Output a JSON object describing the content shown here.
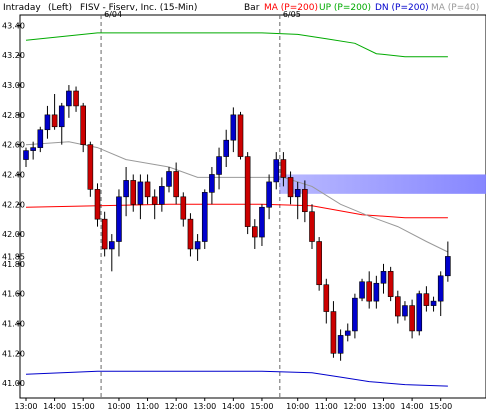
{
  "header": {
    "mode": "Intraday",
    "left_tag": "(Left)",
    "title": "FISV - Fiserv, Inc. (15-Min)",
    "bar": "Bar",
    "legend": [
      {
        "label": "MA (P=200)",
        "color": "#ff0000"
      },
      {
        "label": "UP (P=200)",
        "color": "#00aa00"
      },
      {
        "label": "DN (P=200)",
        "color": "#0000cc"
      },
      {
        "label": "MA (P=40)",
        "color": "#999999"
      }
    ]
  },
  "chart_data": {
    "type": "candlestick",
    "title": "FISV - Fiserv, Inc. (15-Min)",
    "x_tick_labels": [
      "13:00",
      "14:00",
      "15:00",
      "10:00",
      "11:00",
      "12:00",
      "13:00",
      "14:00",
      "15:00",
      "10:00",
      "11:00",
      "12:00",
      "13:00",
      "14:00",
      "15:00"
    ],
    "x_tick_bar_index": [
      0,
      4,
      8,
      13,
      17,
      21,
      25,
      29,
      33,
      38,
      42,
      46,
      50,
      54,
      58
    ],
    "date_markers": [
      {
        "label": "6/04",
        "bar_index": 11
      },
      {
        "label": "6/05",
        "bar_index": 36
      }
    ],
    "y_tick_labels": [
      "43.40",
      "43.20",
      "43.00",
      "42.80",
      "42.60",
      "42.40",
      "42.20",
      "42.00",
      "41.85",
      "41.80",
      "41.60",
      "41.40",
      "41.20",
      "41.00"
    ],
    "ylim": [
      40.9,
      43.47
    ],
    "highlight_band": [
      42.27,
      42.4
    ],
    "colors": {
      "up": "#0000cc",
      "down": "#cc0000",
      "ma200": "#ff0000",
      "up200": "#00aa00",
      "dn200": "#0000cc",
      "ma40": "#999999",
      "band": "#8080ff"
    },
    "candles": [
      [
        42.5,
        42.58,
        42.45,
        42.56
      ],
      [
        42.56,
        42.62,
        42.5,
        42.58
      ],
      [
        42.58,
        42.72,
        42.55,
        42.7
      ],
      [
        42.7,
        42.86,
        42.64,
        42.8
      ],
      [
        42.8,
        42.94,
        42.7,
        42.72
      ],
      [
        42.72,
        42.88,
        42.6,
        42.86
      ],
      [
        42.86,
        43.0,
        42.78,
        42.96
      ],
      [
        42.96,
        42.99,
        42.82,
        42.86
      ],
      [
        42.86,
        42.88,
        42.55,
        42.6
      ],
      [
        42.6,
        42.62,
        42.25,
        42.3
      ],
      [
        42.3,
        42.34,
        42.05,
        42.1
      ],
      [
        42.1,
        42.15,
        41.85,
        41.9
      ],
      [
        41.9,
        42.0,
        41.75,
        41.95
      ],
      [
        41.95,
        42.3,
        41.85,
        42.25
      ],
      [
        42.25,
        42.45,
        42.12,
        42.36
      ],
      [
        42.36,
        42.4,
        42.15,
        42.2
      ],
      [
        42.2,
        42.4,
        42.1,
        42.35
      ],
      [
        42.35,
        42.4,
        42.2,
        42.25
      ],
      [
        42.25,
        42.3,
        42.1,
        42.2
      ],
      [
        42.2,
        42.38,
        42.15,
        42.32
      ],
      [
        42.32,
        42.45,
        42.28,
        42.42
      ],
      [
        42.42,
        42.48,
        42.2,
        42.25
      ],
      [
        42.25,
        42.28,
        42.05,
        42.1
      ],
      [
        42.1,
        42.14,
        41.85,
        41.9
      ],
      [
        41.9,
        42.0,
        41.82,
        41.95
      ],
      [
        41.95,
        42.3,
        41.9,
        42.28
      ],
      [
        42.28,
        42.45,
        42.2,
        42.4
      ],
      [
        42.4,
        42.58,
        42.3,
        42.52
      ],
      [
        42.52,
        42.7,
        42.45,
        42.63
      ],
      [
        42.63,
        42.85,
        42.55,
        42.8
      ],
      [
        42.8,
        42.82,
        42.5,
        42.52
      ],
      [
        42.52,
        42.55,
        42.0,
        42.05
      ],
      [
        42.05,
        42.1,
        41.9,
        41.98
      ],
      [
        41.98,
        42.2,
        41.92,
        42.18
      ],
      [
        42.18,
        42.4,
        42.1,
        42.35
      ],
      [
        42.35,
        42.55,
        42.3,
        42.5
      ],
      [
        42.5,
        42.55,
        42.32,
        42.38
      ],
      [
        42.38,
        42.42,
        42.2,
        42.25
      ],
      [
        42.25,
        42.35,
        42.1,
        42.3
      ],
      [
        42.3,
        42.36,
        42.08,
        42.15
      ],
      [
        42.15,
        42.2,
        41.9,
        41.95
      ],
      [
        41.95,
        41.98,
        41.62,
        41.66
      ],
      [
        41.66,
        41.7,
        41.4,
        41.48
      ],
      [
        41.48,
        41.55,
        41.17,
        41.2
      ],
      [
        41.2,
        41.36,
        41.15,
        41.32
      ],
      [
        41.32,
        41.4,
        41.28,
        41.35
      ],
      [
        41.35,
        41.6,
        41.3,
        41.57
      ],
      [
        41.57,
        41.7,
        41.55,
        41.68
      ],
      [
        41.68,
        41.75,
        41.5,
        41.55
      ],
      [
        41.55,
        41.72,
        41.5,
        41.67
      ],
      [
        41.67,
        41.8,
        41.6,
        41.75
      ],
      [
        41.75,
        41.78,
        41.55,
        41.58
      ],
      [
        41.58,
        41.62,
        41.4,
        41.45
      ],
      [
        41.45,
        41.55,
        41.42,
        41.52
      ],
      [
        41.52,
        41.56,
        41.3,
        41.35
      ],
      [
        41.35,
        41.62,
        41.32,
        41.6
      ],
      [
        41.6,
        41.65,
        41.48,
        41.52
      ],
      [
        41.52,
        41.58,
        41.48,
        41.55
      ],
      [
        41.55,
        41.75,
        41.45,
        41.72
      ],
      [
        41.72,
        41.95,
        41.68,
        41.85
      ]
    ],
    "ma200": [
      [
        0,
        42.18
      ],
      [
        20,
        42.2
      ],
      [
        33,
        42.2
      ],
      [
        40,
        42.19
      ],
      [
        47,
        42.13
      ],
      [
        53,
        42.11
      ],
      [
        59,
        42.11
      ]
    ],
    "up200": [
      [
        0,
        43.3
      ],
      [
        10,
        43.35
      ],
      [
        33,
        43.35
      ],
      [
        38,
        43.34
      ],
      [
        42,
        43.31
      ],
      [
        46,
        43.28
      ],
      [
        49,
        43.21
      ],
      [
        53,
        43.19
      ],
      [
        59,
        43.19
      ]
    ],
    "dn200": [
      [
        0,
        41.06
      ],
      [
        10,
        41.08
      ],
      [
        33,
        41.08
      ],
      [
        40,
        41.07
      ],
      [
        44,
        41.04
      ],
      [
        48,
        41.01
      ],
      [
        53,
        40.99
      ],
      [
        59,
        40.98
      ]
    ],
    "ma40": [
      [
        0,
        42.6
      ],
      [
        6,
        42.62
      ],
      [
        10,
        42.58
      ],
      [
        14,
        42.5
      ],
      [
        20,
        42.45
      ],
      [
        24,
        42.38
      ],
      [
        30,
        42.38
      ],
      [
        36,
        42.38
      ],
      [
        40,
        42.32
      ],
      [
        44,
        42.2
      ],
      [
        48,
        42.12
      ],
      [
        52,
        42.05
      ],
      [
        56,
        41.95
      ],
      [
        59,
        41.88
      ]
    ]
  }
}
